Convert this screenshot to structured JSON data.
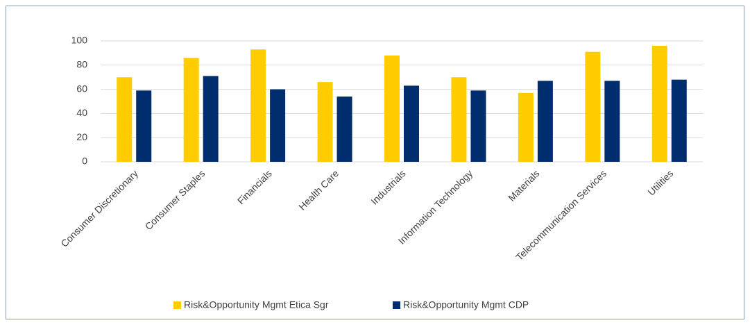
{
  "chart_data": {
    "type": "bar",
    "categories": [
      "Consumer Discretionary",
      "Consumer Staples",
      "Financials",
      "Health Care",
      "Industrials",
      "Information Technology",
      "Materials",
      "Telecommunication Services",
      "Utilities"
    ],
    "series": [
      {
        "name": "Risk&Opportunity Mgmt Etica Sgr",
        "color": "#ffcc00",
        "values": [
          70,
          86,
          93,
          66,
          88,
          70,
          57,
          91,
          96
        ]
      },
      {
        "name": "Risk&Opportunity Mgmt CDP",
        "color": "#002d6e",
        "values": [
          59,
          71,
          60,
          54,
          63,
          59,
          67,
          67,
          68
        ]
      }
    ],
    "ylim": [
      0,
      100
    ],
    "yticks": [
      0,
      20,
      40,
      60,
      80,
      100
    ],
    "grid": true,
    "legend": "bottom"
  }
}
